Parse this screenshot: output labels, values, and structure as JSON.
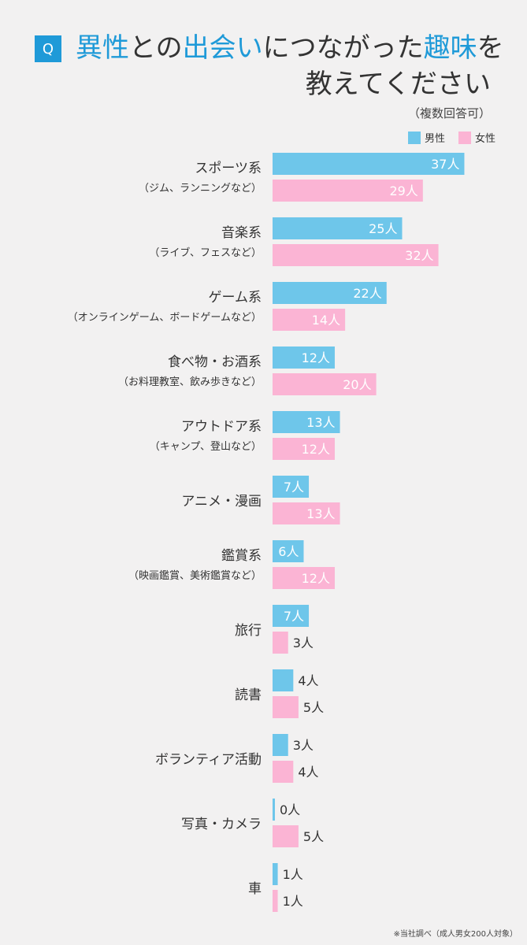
{
  "header": {
    "q_label": "Q",
    "title_parts": [
      {
        "text": "異性",
        "highlight": true
      },
      {
        "text": "との",
        "highlight": false
      },
      {
        "text": "出会い",
        "highlight": true
      },
      {
        "text": "につながった",
        "highlight": false
      },
      {
        "text": "趣味",
        "highlight": true
      },
      {
        "text": "を",
        "highlight": false
      }
    ],
    "title_line2": "教えてください",
    "note": "（複数回答可）"
  },
  "legend": {
    "male": "男性",
    "female": "女性"
  },
  "colors": {
    "male": "#6ec6ea",
    "female": "#fbb4d4",
    "accent": "#1f9ad8",
    "background": "#f2f1f1"
  },
  "source_note": "※当社調べ（成人男女200人対象）",
  "chart_data": {
    "type": "bar",
    "orientation": "horizontal",
    "unit": "人",
    "categories": [
      {
        "label": "スポーツ系",
        "sublabel": "（ジム、ランニングなど）"
      },
      {
        "label": "音楽系",
        "sublabel": "（ライブ、フェスなど）"
      },
      {
        "label": "ゲーム系",
        "sublabel": "（オンラインゲーム、ボードゲームなど）"
      },
      {
        "label": "食べ物・お酒系",
        "sublabel": "（お料理教室、飲み歩きなど）"
      },
      {
        "label": "アウトドア系",
        "sublabel": "（キャンプ、登山など）"
      },
      {
        "label": "アニメ・漫画",
        "sublabel": ""
      },
      {
        "label": "鑑賞系",
        "sublabel": "（映画鑑賞、美術鑑賞など）"
      },
      {
        "label": "旅行",
        "sublabel": ""
      },
      {
        "label": "読書",
        "sublabel": ""
      },
      {
        "label": "ボランティア活動",
        "sublabel": ""
      },
      {
        "label": "写真・カメラ",
        "sublabel": ""
      },
      {
        "label": "車",
        "sublabel": ""
      }
    ],
    "series": [
      {
        "name": "男性",
        "values": [
          37,
          25,
          22,
          12,
          13,
          7,
          6,
          7,
          4,
          3,
          0,
          1
        ]
      },
      {
        "name": "女性",
        "values": [
          29,
          32,
          14,
          20,
          12,
          13,
          12,
          3,
          5,
          4,
          5,
          1
        ]
      }
    ],
    "xlim": [
      0,
      40
    ],
    "legend_position": "top-right",
    "grid": false
  }
}
